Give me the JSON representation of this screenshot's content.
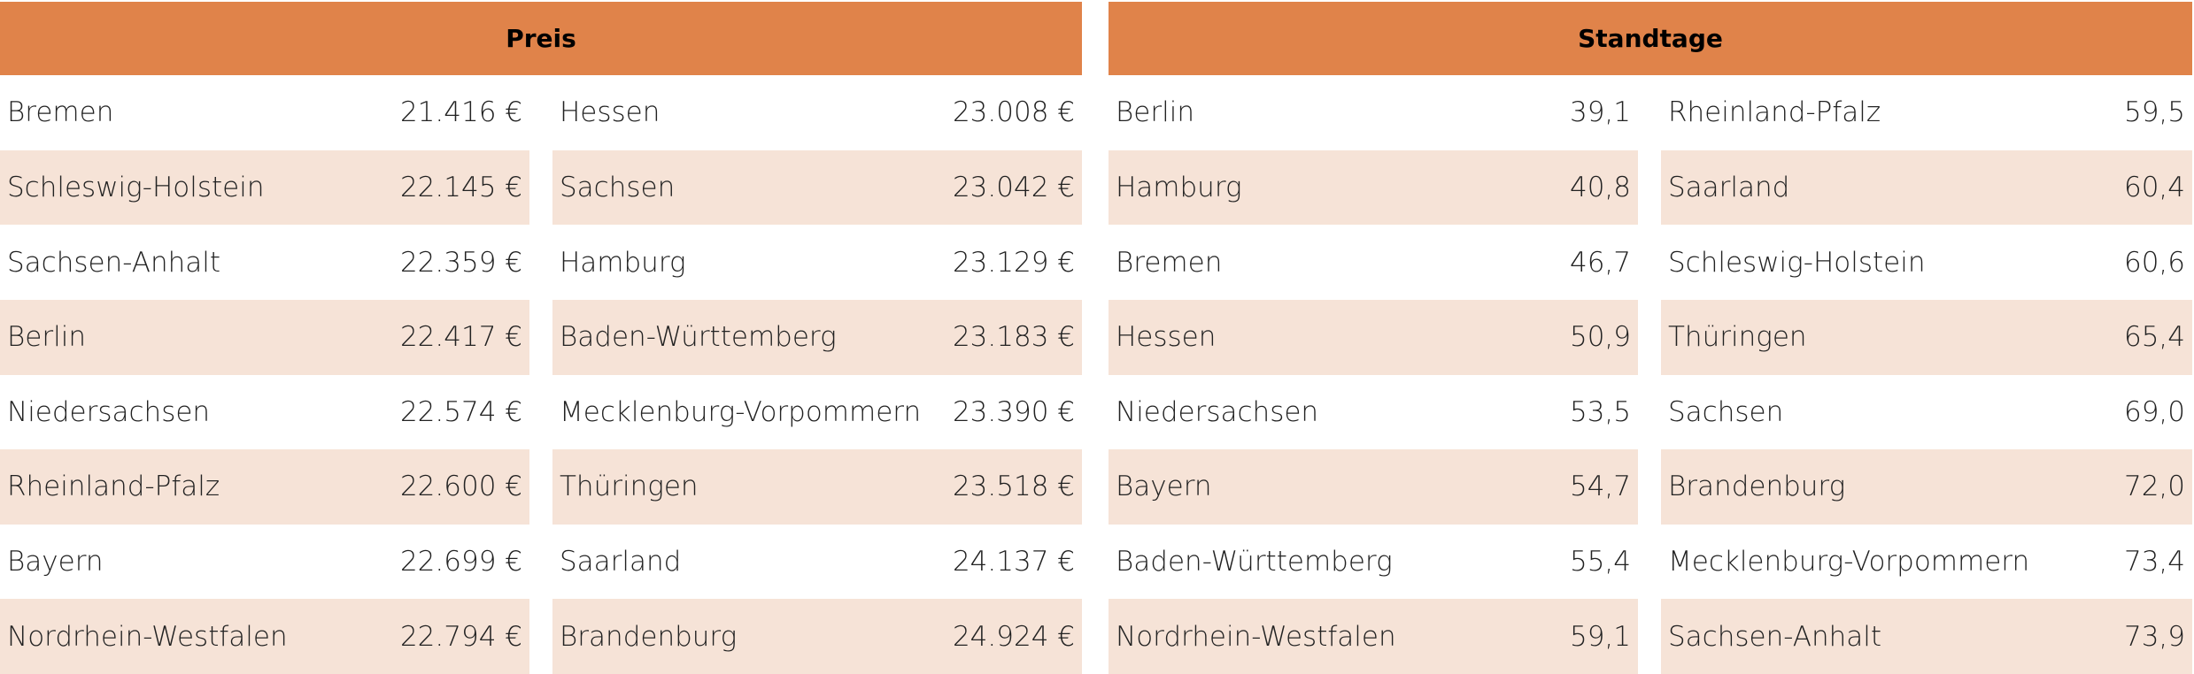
{
  "panels": [
    {
      "title": "Preis",
      "columns": [
        [
          [
            "Bremen",
            "21.416 €"
          ],
          [
            "Schleswig-Holstein",
            "22.145 €"
          ],
          [
            "Sachsen-Anhalt",
            "22.359 €"
          ],
          [
            "Berlin",
            "22.417 €"
          ],
          [
            "Niedersachsen",
            "22.574 €"
          ],
          [
            "Rheinland-Pfalz",
            "22.600 €"
          ],
          [
            "Bayern",
            "22.699 €"
          ],
          [
            "Nordrhein-Westfalen",
            "22.794 €"
          ]
        ],
        [
          [
            "Hessen",
            "23.008 €"
          ],
          [
            "Sachsen",
            "23.042 €"
          ],
          [
            "Hamburg",
            "23.129 €"
          ],
          [
            "Baden-Württemberg",
            "23.183 €"
          ],
          [
            "Mecklenburg-Vorpommern",
            "23.390 €"
          ],
          [
            "Thüringen",
            "23.518 €"
          ],
          [
            "Saarland",
            "24.137 €"
          ],
          [
            "Brandenburg",
            "24.924 €"
          ]
        ]
      ]
    },
    {
      "title": "Standtage",
      "columns": [
        [
          [
            "Berlin",
            "39,1"
          ],
          [
            "Hamburg",
            "40,8"
          ],
          [
            "Bremen",
            "46,7"
          ],
          [
            "Hessen",
            "50,9"
          ],
          [
            "Niedersachsen",
            "53,5"
          ],
          [
            "Bayern",
            "54,7"
          ],
          [
            "Baden-Württemberg",
            "55,4"
          ],
          [
            "Nordrhein-Westfalen",
            "59,1"
          ]
        ],
        [
          [
            "Rheinland-Pfalz",
            "59,5"
          ],
          [
            "Saarland",
            "60,4"
          ],
          [
            "Schleswig-Holstein",
            "60,6"
          ],
          [
            "Thüringen",
            "65,4"
          ],
          [
            "Sachsen",
            "69,0"
          ],
          [
            "Brandenburg",
            "72,0"
          ],
          [
            "Mecklenburg-Vorpommern",
            "73,4"
          ],
          [
            "Sachsen-Anhalt",
            "73,9"
          ]
        ]
      ]
    }
  ]
}
